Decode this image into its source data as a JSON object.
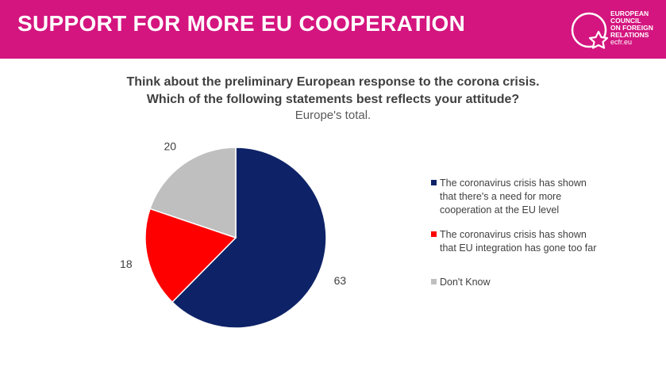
{
  "header": {
    "title": "SUPPORT FOR MORE EU COOPERATION",
    "logo_lines": [
      "EUROPEAN",
      "COUNCIL",
      "ON FOREIGN",
      "RELATIONS"
    ],
    "logo_url": "ecfr.eu",
    "background": "#d4157f"
  },
  "chart_data": {
    "type": "pie",
    "title": "Think about the preliminary European response to the corona crisis.",
    "title_line2": "Which of the following statements best reflects your attitude?",
    "subtitle": "Europe's total.",
    "legend_position": "right",
    "slices": [
      {
        "label": "The coronavirus crisis has shown that there's a need for more cooperation at the EU level",
        "label_lines": [
          "The coronavirus crisis has shown",
          "that there's a need for more",
          "cooperation at the EU level"
        ],
        "value": 63,
        "color": "#0e2367"
      },
      {
        "label": "The coronavirus crisis has shown that  EU integration has gone too far",
        "label_lines": [
          "The coronavirus crisis has shown",
          "that  EU integration has gone too far"
        ],
        "value": 18,
        "color": "#ff0000"
      },
      {
        "label": "Don't Know",
        "label_lines": [
          "Don't Know"
        ],
        "value": 20,
        "color": "#bfbfbf"
      }
    ]
  }
}
